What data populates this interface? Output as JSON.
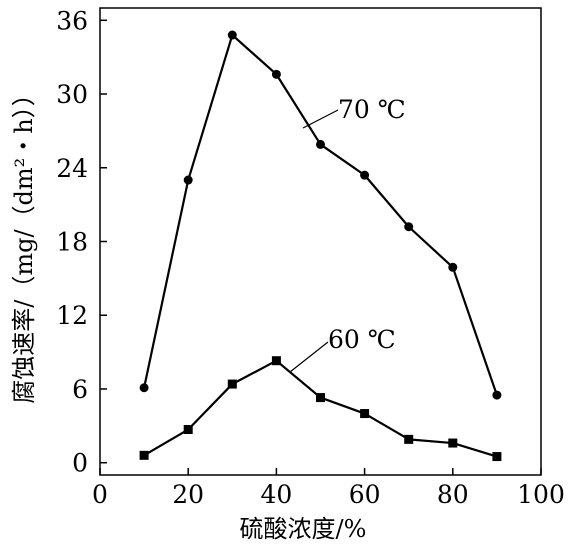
{
  "chart_data": {
    "type": "line",
    "xlabel": "硫酸浓度/%",
    "ylabel": "腐蚀速率/（mg/（dm²・h））",
    "xlim": [
      0,
      100
    ],
    "ylim": [
      -1,
      37
    ],
    "xticks": [
      0,
      20,
      40,
      60,
      80,
      100
    ],
    "yticks": [
      0,
      6,
      12,
      18,
      24,
      30,
      36
    ],
    "grid": false,
    "legend": "none",
    "series": [
      {
        "name": "70 ℃",
        "marker": "circle",
        "x": [
          10,
          20,
          30,
          40,
          50,
          60,
          70,
          80,
          90
        ],
        "y": [
          6.1,
          23,
          34.8,
          31.6,
          25.9,
          23.4,
          19.2,
          15.9,
          5.5
        ]
      },
      {
        "name": "60 ℃",
        "marker": "square",
        "x": [
          10,
          20,
          30,
          40,
          50,
          60,
          70,
          80,
          90
        ],
        "y": [
          0.6,
          2.7,
          6.4,
          8.3,
          5.3,
          4.0,
          1.9,
          1.6,
          0.5
        ]
      }
    ]
  }
}
